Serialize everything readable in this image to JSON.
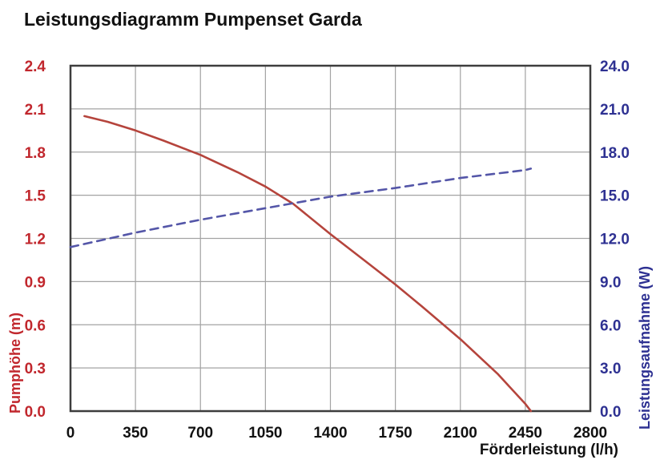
{
  "title": "Leistungsdiagramm Pumpenset Garda",
  "colors": {
    "background": "#ffffff",
    "title_text": "#111111",
    "grid": "#a3a3a3",
    "plot_border": "#3d3d3d",
    "head_axis_text": "#c1272d",
    "head_curve": "#b5443c",
    "power_axis_text": "#2e3192",
    "power_curve": "#5456a8",
    "x_axis_text": "#111111"
  },
  "chart_data": {
    "type": "line",
    "title": "Leistungsdiagramm Pumpenset Garda",
    "xlabel": "Förderleistung (l/h)",
    "ylabel_left": "Pumphöhe (m)",
    "ylabel_right": "Leistungsaufnahme (W)",
    "xlim": [
      0,
      2800
    ],
    "ylim_left": [
      0,
      2.4
    ],
    "ylim_right": [
      0,
      24
    ],
    "grid": true,
    "legend": false,
    "x_ticks": [
      0,
      350,
      700,
      1050,
      1400,
      1750,
      2100,
      2450,
      2800
    ],
    "x_tick_labels": [
      "0",
      "350",
      "700",
      "1050",
      "1400",
      "1750",
      "2100",
      "2450",
      "2800"
    ],
    "y_left_tick_labels": [
      "2.4",
      "2.1",
      "1.8",
      "1.5",
      "1.2",
      "0.9",
      "0.6",
      "0.3",
      "0.0"
    ],
    "y_right_tick_labels": [
      "24.0",
      "21.0",
      "18.0",
      "15.0",
      "12.0",
      "9.0",
      "6.0",
      "3.0",
      "0.0"
    ],
    "series": [
      {
        "name": "Pumphöhe (m)",
        "axis": "left",
        "style": "solid",
        "color": "#b5443c",
        "points": [
          [
            75,
            2.05
          ],
          [
            200,
            2.01
          ],
          [
            350,
            1.95
          ],
          [
            500,
            1.88
          ],
          [
            700,
            1.78
          ],
          [
            900,
            1.66
          ],
          [
            1050,
            1.56
          ],
          [
            1200,
            1.44
          ],
          [
            1400,
            1.23
          ],
          [
            1600,
            1.03
          ],
          [
            1750,
            0.88
          ],
          [
            1900,
            0.72
          ],
          [
            2100,
            0.5
          ],
          [
            2300,
            0.26
          ],
          [
            2450,
            0.05
          ],
          [
            2480,
            0.0
          ]
        ]
      },
      {
        "name": "Leistungsaufnahme (W)",
        "axis": "right",
        "style": "dashed",
        "color": "#5456a8",
        "points": [
          [
            0,
            11.4
          ],
          [
            350,
            12.4
          ],
          [
            700,
            13.3
          ],
          [
            1050,
            14.1
          ],
          [
            1400,
            14.9
          ],
          [
            1750,
            15.5
          ],
          [
            2100,
            16.2
          ],
          [
            2450,
            16.75
          ],
          [
            2480,
            16.85
          ]
        ]
      }
    ]
  }
}
